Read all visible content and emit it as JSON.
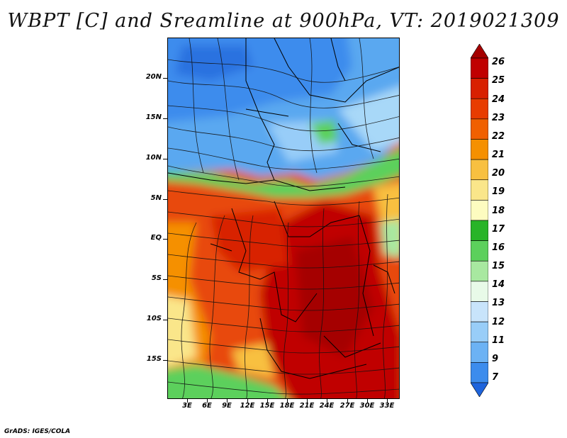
{
  "title": "WBPT [C] and Sreamline at 900hPa, VT: 2019021309",
  "credit": "GrADS: IGES/COLA",
  "lat_labels": [
    "20N",
    "15N",
    "10N",
    "5N",
    "EQ",
    "5S",
    "10S",
    "15S"
  ],
  "lon_labels": [
    "3E",
    "6E",
    "9E",
    "12E",
    "15E",
    "18E",
    "21E",
    "24E",
    "27E",
    "30E",
    "33E"
  ],
  "colorbar": {
    "labels": [
      "26",
      "25",
      "24",
      "23",
      "22",
      "21",
      "20",
      "19",
      "18",
      "17",
      "16",
      "15",
      "14",
      "13",
      "12",
      "11",
      "9",
      "7"
    ],
    "colors": [
      "#a50000",
      "#c00000",
      "#d82000",
      "#e83c00",
      "#f06000",
      "#f59000",
      "#f8c040",
      "#fae68a",
      "#fdfcc0",
      "#28b428",
      "#5cd05c",
      "#a8e8a0",
      "#e8fae8",
      "#c8e4fb",
      "#98cdf8",
      "#6cb2f4",
      "#3c8ced",
      "#1e64dc"
    ]
  }
}
